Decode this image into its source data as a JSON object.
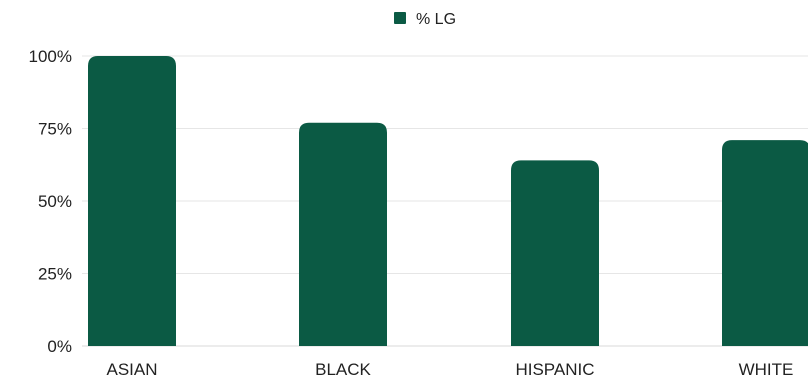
{
  "chart_data": {
    "type": "bar",
    "categories": [
      "ASIAN",
      "BLACK",
      "HISPANIC",
      "WHITE"
    ],
    "series": [
      {
        "name": "% LG",
        "color": "#0b5a44",
        "values": [
          100,
          77,
          64,
          71
        ]
      }
    ],
    "ylim": [
      0,
      100
    ],
    "yticks": [
      0,
      25,
      50,
      75,
      100
    ],
    "ytick_labels": [
      "0%",
      "25%",
      "50%",
      "75%",
      "100%"
    ],
    "grid": true,
    "legend_position": "top-center"
  }
}
